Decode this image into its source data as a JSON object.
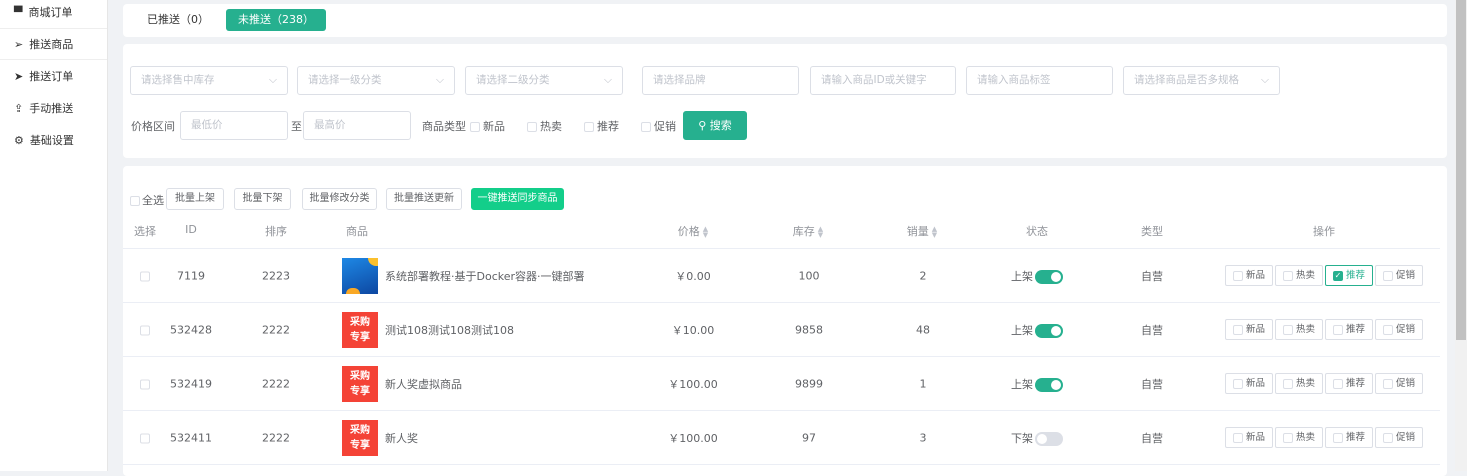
{
  "sidebar": {
    "items": [
      {
        "label": "商城订单",
        "icon": "cart-icon"
      },
      {
        "label": "推送商品",
        "icon": "send-icon"
      },
      {
        "label": "推送订单",
        "icon": "paper-plane-icon"
      },
      {
        "label": "手动推送",
        "icon": "upload-icon"
      },
      {
        "label": "基础设置",
        "icon": "gears-icon"
      }
    ]
  },
  "tabs": [
    {
      "label": "已推送（0）"
    },
    {
      "label": "未推送（238）",
      "active": true
    }
  ],
  "filters": {
    "stock": "请选择售中库存",
    "cat1": "请选择一级分类",
    "cat2": "请选择二级分类",
    "brand": "请选择品牌",
    "keyword": "请输入商品ID或关键字",
    "tag": "请输入商品标签",
    "spec": "请选择商品是否多规格",
    "price_label": "价格区间",
    "min": "最低价",
    "to": "至",
    "max": "最高价",
    "type_label": "商品类型",
    "types": [
      "新品",
      "热卖",
      "推荐",
      "促销"
    ],
    "search": "搜索"
  },
  "toolbar": {
    "select_all": "全选",
    "buttons": [
      "批量上架",
      "批量下架",
      "批量修改分类",
      "批量推送更新"
    ],
    "primary": "一键推送同步商品"
  },
  "table": {
    "headers": [
      "选择",
      "ID",
      "排序",
      "商品",
      "价格",
      "库存",
      "销量",
      "状态",
      "类型",
      "操作"
    ],
    "rows": [
      {
        "id": "7119",
        "sort": "2223",
        "name": "系统部署教程·基于Docker容器·一键部署",
        "price": "￥0.00",
        "stock": "100",
        "sales": "2",
        "status": "上架",
        "on": true,
        "type": "自营",
        "thumb": "blue",
        "ops": [
          false,
          false,
          true,
          false
        ]
      },
      {
        "id": "532428",
        "sort": "2222",
        "name": "测试108测试108测试108",
        "price": "￥10.00",
        "stock": "9858",
        "sales": "48",
        "status": "上架",
        "on": true,
        "type": "自营",
        "thumb": "red",
        "ops": [
          false,
          false,
          false,
          false
        ]
      },
      {
        "id": "532419",
        "sort": "2222",
        "name": "新人奖虚拟商品",
        "price": "￥100.00",
        "stock": "9899",
        "sales": "1",
        "status": "上架",
        "on": true,
        "type": "自营",
        "thumb": "red",
        "ops": [
          false,
          false,
          false,
          false
        ]
      },
      {
        "id": "532411",
        "sort": "2222",
        "name": "新人奖",
        "price": "￥100.00",
        "stock": "97",
        "sales": "3",
        "status": "下架",
        "on": false,
        "type": "自营",
        "thumb": "red",
        "ops": [
          false,
          false,
          false,
          false
        ]
      }
    ],
    "op_labels": [
      "新品",
      "热卖",
      "推荐",
      "促销"
    ],
    "thumb_red_text": [
      "采购",
      "专享"
    ]
  },
  "colors": {
    "accent": "#26b08f",
    "primary_button": "#13ce8a"
  }
}
